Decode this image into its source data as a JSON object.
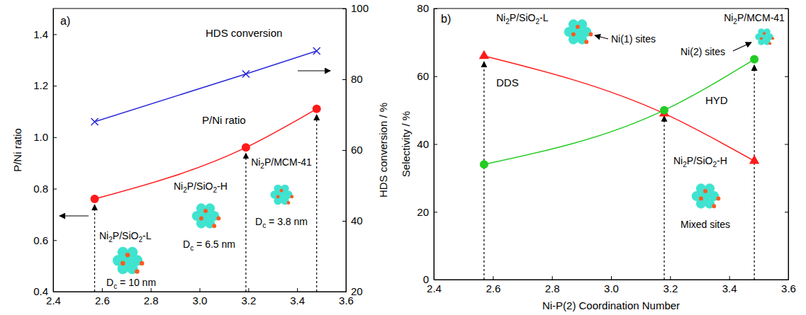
{
  "chart_data": [
    {
      "type": "line",
      "title": "a)",
      "x": [
        2.57,
        3.19,
        3.48
      ],
      "xlim": [
        2.4,
        3.6
      ],
      "xticks": [
        2.4,
        2.6,
        2.8,
        {
          "value": 3,
          "label": "3.0"
        },
        3.2,
        3.4,
        3.6
      ],
      "ylim": [
        0.4,
        1.5
      ],
      "yticks": [
        0.4,
        0.6,
        0.8,
        {
          "value": 1,
          "label": "1.0"
        },
        1.2,
        1.4
      ],
      "y_label": "P/Ni ratio",
      "y2lim": [
        20,
        100
      ],
      "y2ticks": [
        20,
        40,
        60,
        80,
        100
      ],
      "y2_label": "HDS conversion / %",
      "grid": false,
      "series": [
        {
          "name": "P/Ni ratio",
          "color": "#ff1a1a",
          "values": [
            0.76,
            0.96,
            1.11
          ],
          "marker": "circle",
          "line_style": "smooth"
        },
        {
          "name": "HDS conversion",
          "color": "#2b2bd9",
          "values": [
            68,
            81.5,
            88
          ],
          "axis": "y2",
          "marker": "x",
          "line_style": "solid"
        }
      ],
      "annotations": [
        "Ni2P/SiO2-L",
        "Dc = 10 nm",
        "Ni2P/SiO2-H",
        "Dc = 6.5 nm",
        "Ni2P/MCM-41",
        "Dc = 3.8 nm"
      ]
    },
    {
      "type": "line",
      "title": "b)",
      "x": [
        2.57,
        3.18,
        3.485
      ],
      "xlim": [
        2.4,
        3.6
      ],
      "xticks": [
        2.4,
        2.6,
        2.8,
        {
          "value": 3,
          "label": "3.0"
        },
        3.2,
        3.4,
        3.6
      ],
      "x_label": "Ni-P(2) Coordination Number",
      "ylim": [
        0,
        80
      ],
      "yticks": [
        0,
        20,
        40,
        60,
        80
      ],
      "y_label": "Selectivity / %",
      "grid": false,
      "series": [
        {
          "name": "DDS",
          "color": "#ff1a1a",
          "values": [
            66,
            49,
            35
          ],
          "marker": "triangle",
          "line_style": "smooth"
        },
        {
          "name": "HYD",
          "color": "#22cc22",
          "values": [
            34,
            50,
            65
          ],
          "marker": "circle",
          "line_style": "smooth"
        }
      ],
      "annotations": [
        "Ni2P/SiO2-L",
        "Ni(1) sites",
        "Ni2P/MCM-41",
        "Ni(2) sites",
        "Ni2P/SiO2-H",
        "Mixed sites"
      ]
    }
  ]
}
